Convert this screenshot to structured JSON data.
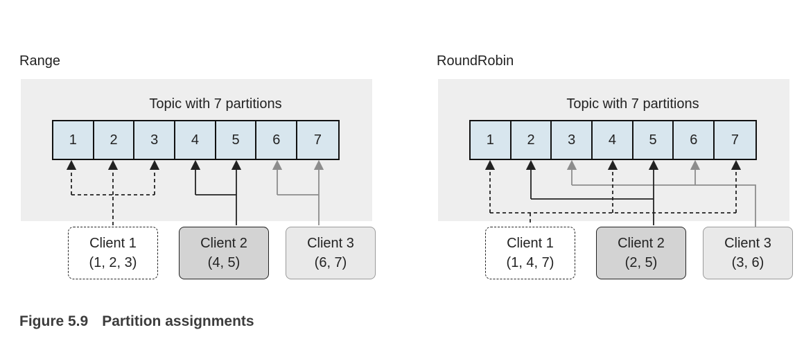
{
  "panels": [
    {
      "title": "Range",
      "topic_title": "Topic with 7 partitions",
      "partitions": [
        "1",
        "2",
        "3",
        "4",
        "5",
        "6",
        "7"
      ],
      "clients": [
        {
          "name": "Client 1",
          "assignment": "(1, 2, 3)"
        },
        {
          "name": "Client 2",
          "assignment": "(4, 5)"
        },
        {
          "name": "Client 3",
          "assignment": "(6, 7)"
        }
      ]
    },
    {
      "title": "RoundRobin",
      "topic_title": "Topic with 7 partitions",
      "partitions": [
        "1",
        "2",
        "3",
        "4",
        "5",
        "6",
        "7"
      ],
      "clients": [
        {
          "name": "Client 1",
          "assignment": "(1, 4, 7)"
        },
        {
          "name": "Client 2",
          "assignment": "(2, 5)"
        },
        {
          "name": "Client 3",
          "assignment": "(3, 6)"
        }
      ]
    }
  ],
  "caption": {
    "label": "Figure 5.9",
    "text": "Partition assignments"
  },
  "colors": {
    "partition_fill": "#d8e6ee",
    "topic_bg": "#eeeeee",
    "client2_fill": "#d3d3d3",
    "client3_fill": "#e9e9e9",
    "client3_line": "#8c8c8c"
  }
}
